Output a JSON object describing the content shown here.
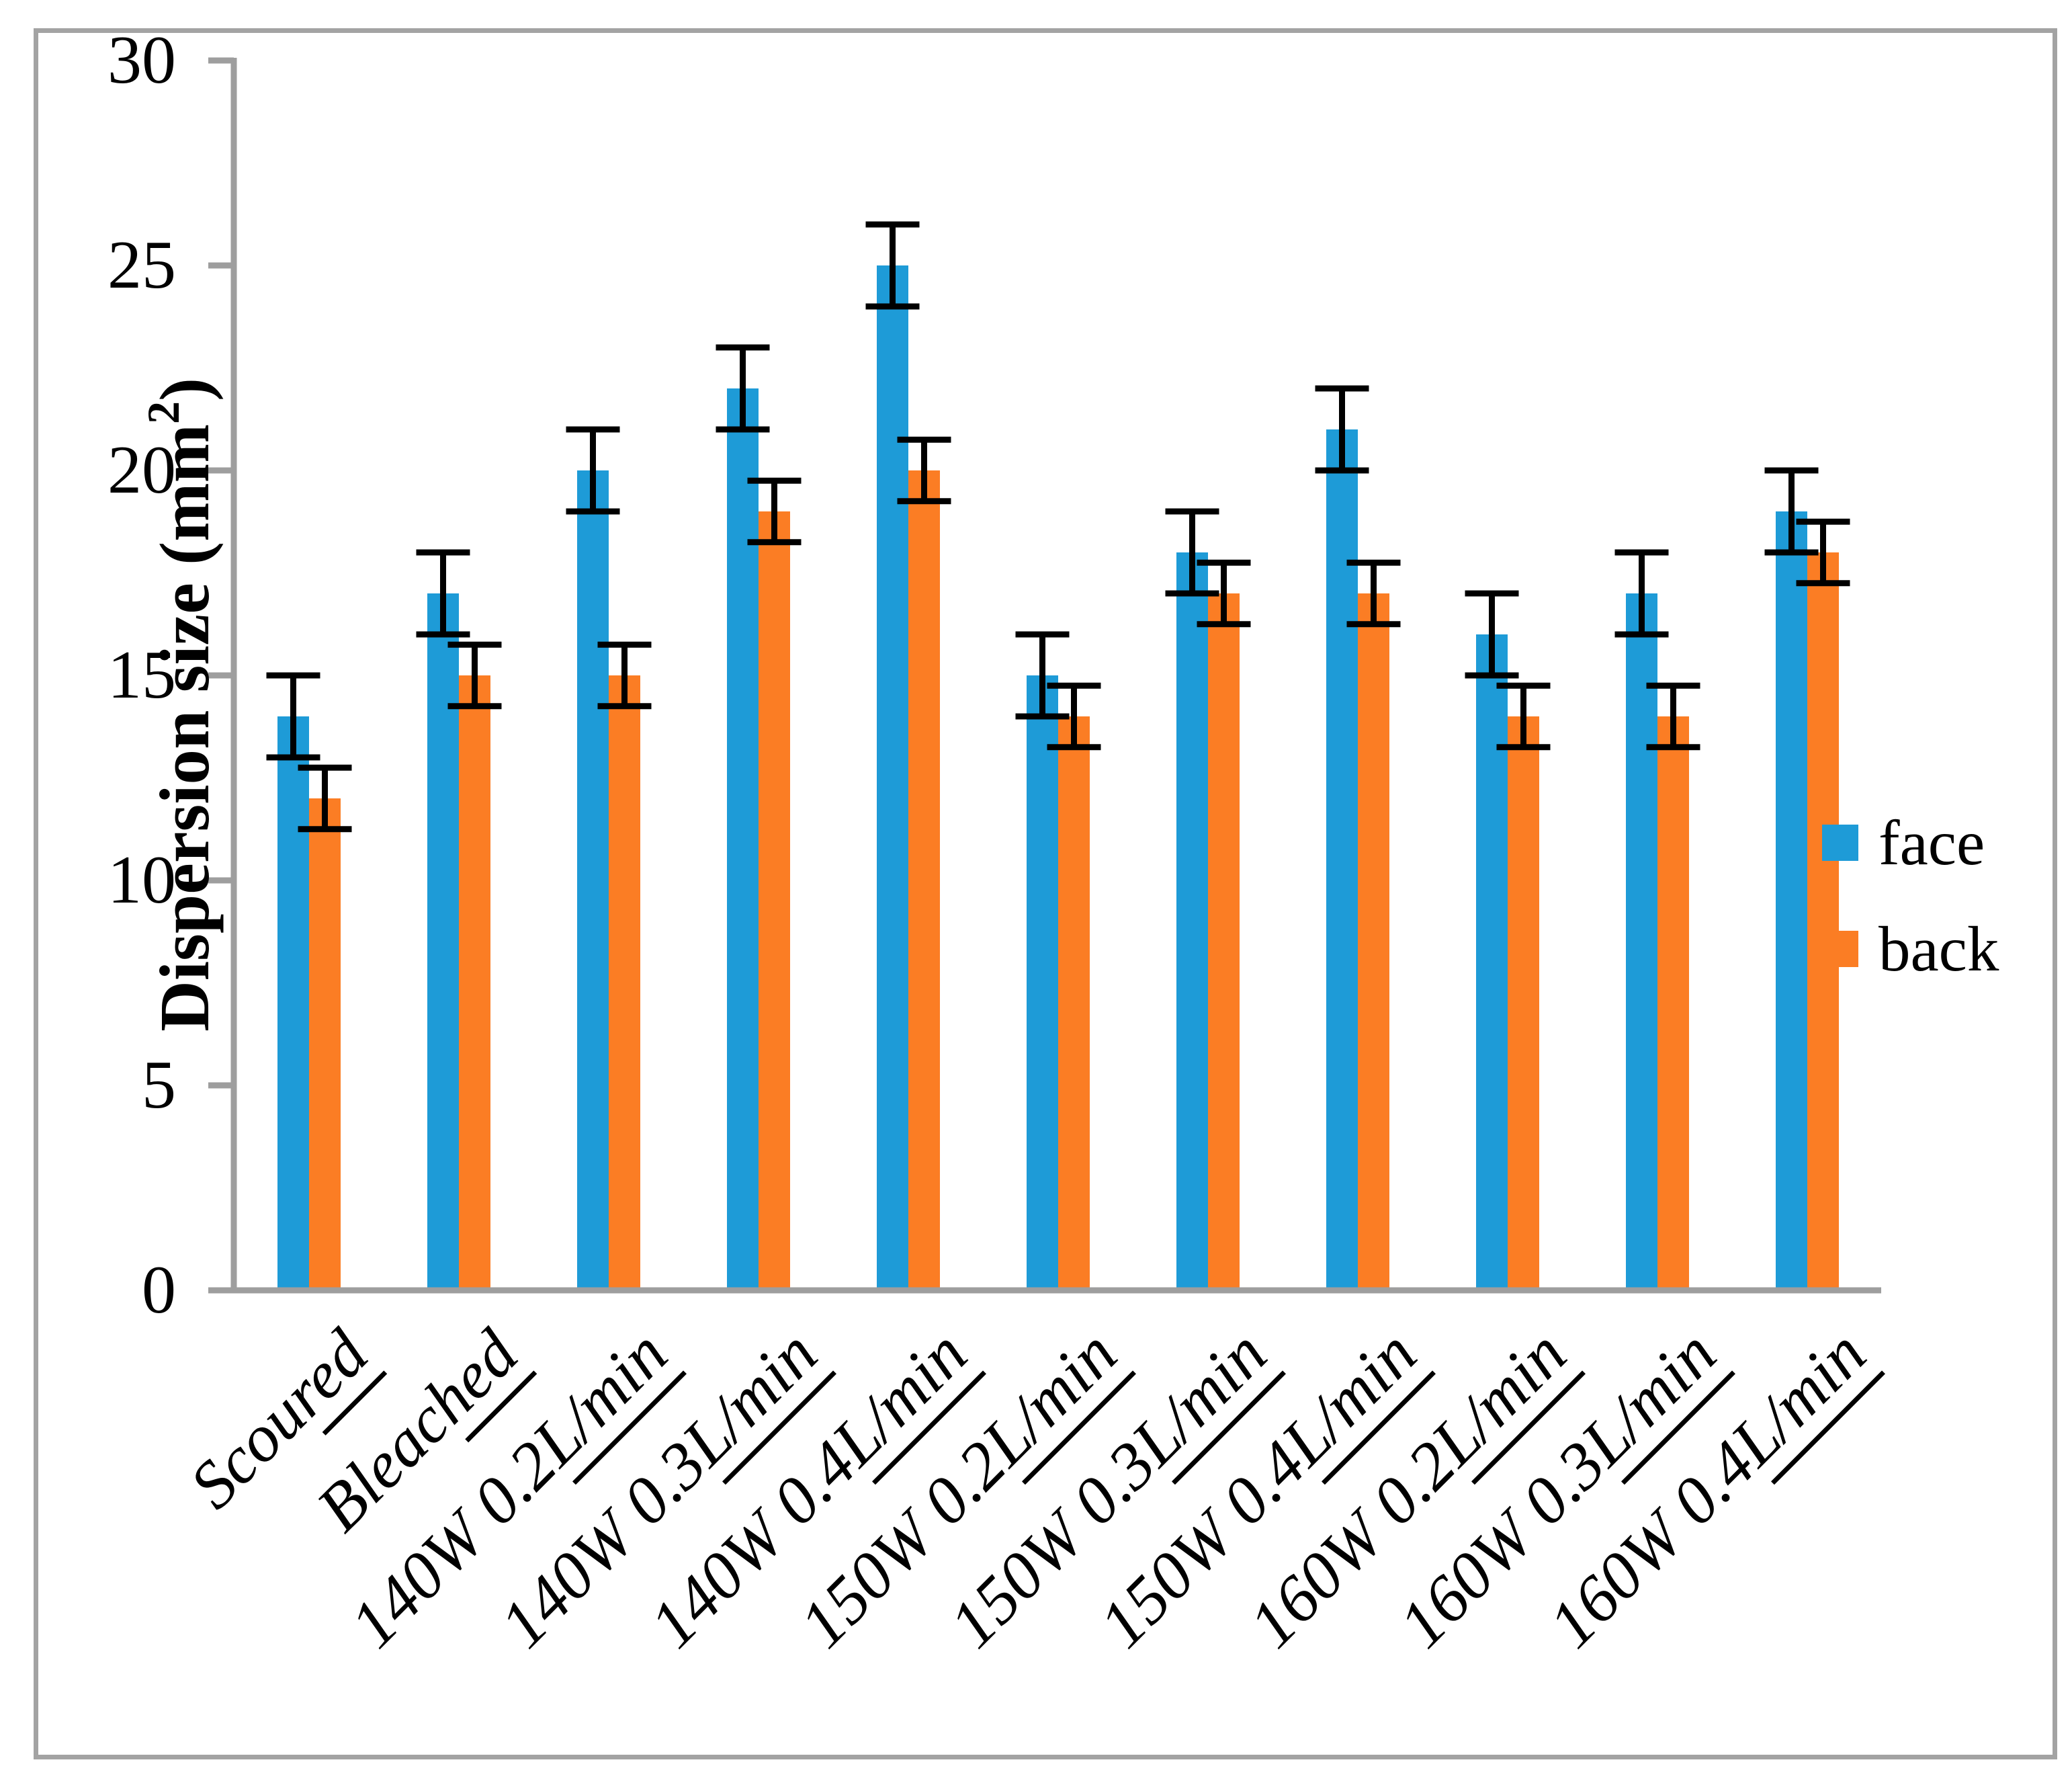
{
  "window": {
    "background": "#ffffff",
    "frame_color": "#a3a3a3"
  },
  "chart_data": {
    "type": "bar",
    "title": "",
    "xlabel": "",
    "ylabel": "Dispersion size (mm²)",
    "ylabel_parts": {
      "pre": "Dispersion size (mm",
      "sup": "2",
      "post": ")"
    },
    "ylim": [
      0,
      30
    ],
    "yticks": [
      0,
      5,
      10,
      15,
      20,
      25,
      30
    ],
    "grid": false,
    "legend_position": "middle-right",
    "axis_color": "#9e9e9e",
    "error_bar_color": "#000000",
    "categories": [
      "Scoured",
      "Bleached",
      "140W 0.2L/min",
      "140W 0.3L/min",
      "140W 0.4L/min",
      "150W 0.2L/min",
      "150W 0.3L/min",
      "150W 0.4L/min",
      "160W 0.2L/min",
      "160W 0.3L/min",
      "160W 0.4L/min"
    ],
    "category_label_parts": [
      {
        "pre": "Scou",
        "und": "red"
      },
      {
        "pre": "Bleac",
        "und": "hed"
      },
      {
        "pre": "140W 0.2",
        "und": "L/min"
      },
      {
        "pre": "140W 0.3",
        "und": "L/min"
      },
      {
        "pre": "140W 0.4",
        "und": "L/min"
      },
      {
        "pre": "150W 0.2",
        "und": "L/min"
      },
      {
        "pre": "150W 0.3",
        "und": "L/min"
      },
      {
        "pre": "150W 0.4",
        "und": "L/min"
      },
      {
        "pre": "160W 0.2",
        "und": "L/min"
      },
      {
        "pre": "160W 0.3",
        "und": "L/min"
      },
      {
        "pre": "160W 0.4",
        "und": "L/min"
      }
    ],
    "series": [
      {
        "name": "face",
        "color": "#1e9bd7",
        "values": [
          14,
          17,
          20,
          22,
          25,
          15,
          18,
          21,
          16,
          17,
          19
        ],
        "errors": [
          1,
          1,
          1,
          1,
          1,
          1,
          1,
          1,
          1,
          1,
          1
        ]
      },
      {
        "name": "back",
        "color": "#fb7d24",
        "values": [
          12,
          15,
          15,
          19,
          20,
          14,
          17,
          17,
          14,
          14,
          18
        ],
        "errors": [
          0.75,
          0.75,
          0.75,
          0.75,
          0.75,
          0.75,
          0.75,
          0.75,
          0.75,
          0.75,
          0.75
        ]
      }
    ]
  }
}
